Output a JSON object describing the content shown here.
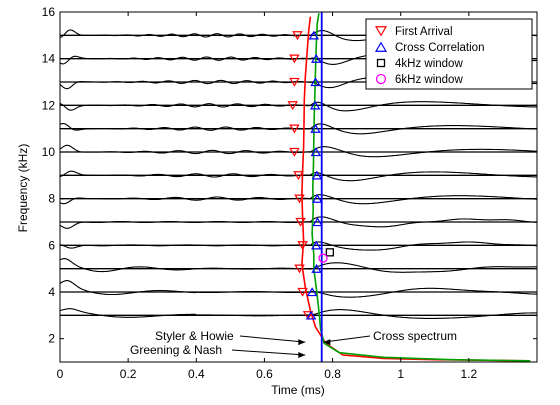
{
  "chart_data": {
    "type": "line",
    "xlabel": "Time (ms)",
    "ylabel": "Frequency (kHz)",
    "xlim": [
      0,
      1.4
    ],
    "ylim": [
      1,
      16
    ],
    "xticks": [
      0,
      0.2,
      0.4,
      0.6,
      0.8,
      1.0,
      1.2
    ],
    "xtick_labels": [
      "0",
      "0.2",
      "0.4",
      "0.6",
      "0.8",
      "1",
      "1.2"
    ],
    "yticks": [
      2,
      4,
      6,
      8,
      10,
      12,
      14,
      16
    ],
    "ytick_labels": [
      "2",
      "4",
      "6",
      "8",
      "10",
      "12",
      "14",
      "16"
    ],
    "grid": false,
    "legend_position": "top-right",
    "legend": [
      {
        "label": "First Arrival",
        "marker": "triangle-down",
        "color": "#ff0000"
      },
      {
        "label": "Cross Correlation",
        "marker": "triangle-up",
        "color": "#0000ff"
      },
      {
        "label": "4kHz window",
        "marker": "square",
        "color": "#000000"
      },
      {
        "label": "6kHz window",
        "marker": "circle",
        "color": "#ff00ff"
      }
    ],
    "traces": {
      "color": "#000000",
      "baselines_khz": [
        3,
        4,
        5,
        6,
        7,
        8,
        9,
        10,
        11,
        12,
        13,
        14,
        15
      ]
    },
    "first_arrival": {
      "color": "#ff0000",
      "points": [
        {
          "freq": 3,
          "time": 0.728
        },
        {
          "freq": 4,
          "time": 0.712
        },
        {
          "freq": 5,
          "time": 0.703
        },
        {
          "freq": 6,
          "time": 0.712
        },
        {
          "freq": 7,
          "time": 0.706
        },
        {
          "freq": 8,
          "time": 0.703
        },
        {
          "freq": 9,
          "time": 0.7
        },
        {
          "freq": 10,
          "time": 0.688
        },
        {
          "freq": 11,
          "time": 0.688
        },
        {
          "freq": 12,
          "time": 0.683
        },
        {
          "freq": 13,
          "time": 0.688
        },
        {
          "freq": 14,
          "time": 0.688
        },
        {
          "freq": 15,
          "time": 0.697
        }
      ]
    },
    "cross_correlation": {
      "color": "#0000ff",
      "points": [
        {
          "freq": 3,
          "time": 0.737
        },
        {
          "freq": 4,
          "time": 0.74
        },
        {
          "freq": 5,
          "time": 0.753
        },
        {
          "freq": 6,
          "time": 0.752
        },
        {
          "freq": 7,
          "time": 0.756
        },
        {
          "freq": 8,
          "time": 0.755
        },
        {
          "freq": 9,
          "time": 0.754
        },
        {
          "freq": 10,
          "time": 0.751
        },
        {
          "freq": 11,
          "time": 0.75
        },
        {
          "freq": 12,
          "time": 0.749
        },
        {
          "freq": 13,
          "time": 0.75
        },
        {
          "freq": 14,
          "time": 0.752
        },
        {
          "freq": 15,
          "time": 0.745
        }
      ]
    },
    "window_4khz": {
      "color": "#000000",
      "points": [
        {
          "freq": 5.7,
          "time": 0.792
        }
      ]
    },
    "window_6khz": {
      "color": "#ff00ff",
      "points": [
        {
          "freq": 5.45,
          "time": 0.772
        }
      ]
    },
    "delay_curves": [
      {
        "name": "Styler & Howie",
        "color": "#ff0000",
        "points": [
          [
            1.38,
            1.05
          ],
          [
            1.1,
            1.1
          ],
          [
            0.95,
            1.15
          ],
          [
            0.83,
            1.3
          ],
          [
            0.78,
            1.8
          ],
          [
            0.75,
            2.5
          ],
          [
            0.735,
            3.2
          ],
          [
            0.72,
            4.2
          ],
          [
            0.71,
            5.2
          ],
          [
            0.715,
            6.2
          ],
          [
            0.712,
            7.2
          ],
          [
            0.71,
            8.2
          ],
          [
            0.712,
            9.2
          ],
          [
            0.715,
            10.2
          ],
          [
            0.716,
            11.2
          ],
          [
            0.717,
            12.2
          ],
          [
            0.72,
            13.2
          ],
          [
            0.725,
            14.2
          ],
          [
            0.73,
            15.2
          ],
          [
            0.735,
            15.8
          ]
        ]
      },
      {
        "name": "Greening & Nash",
        "color": "#00a000",
        "points": [
          [
            1.38,
            1.05
          ],
          [
            1.15,
            1.1
          ],
          [
            0.95,
            1.2
          ],
          [
            0.82,
            1.4
          ],
          [
            0.775,
            1.8
          ],
          [
            0.765,
            2.4
          ],
          [
            0.76,
            3.2
          ],
          [
            0.752,
            4.2
          ],
          [
            0.745,
            5.0
          ],
          [
            0.745,
            5.6
          ],
          [
            0.74,
            6.5
          ],
          [
            0.743,
            7.5
          ],
          [
            0.742,
            8.5
          ],
          [
            0.744,
            9.5
          ],
          [
            0.745,
            10.5
          ],
          [
            0.746,
            11.5
          ],
          [
            0.748,
            12.5
          ],
          [
            0.75,
            13.5
          ],
          [
            0.752,
            14.5
          ],
          [
            0.755,
            15.5
          ],
          [
            0.76,
            15.95
          ]
        ]
      },
      {
        "name": "Cross spectrum",
        "color": "#0000ff",
        "points": [
          [
            0.768,
            1.0
          ],
          [
            0.768,
            16.0
          ]
        ]
      }
    ],
    "annotations": [
      {
        "text": "Styler & Howie",
        "arrow_to": {
          "time": 0.72,
          "freq": 1.85
        }
      },
      {
        "text": "Greening & Nash",
        "arrow_to": {
          "time": 0.72,
          "freq": 1.3
        }
      },
      {
        "text": "Cross spectrum",
        "arrow_to": {
          "time": 0.773,
          "freq": 1.85
        }
      }
    ]
  }
}
